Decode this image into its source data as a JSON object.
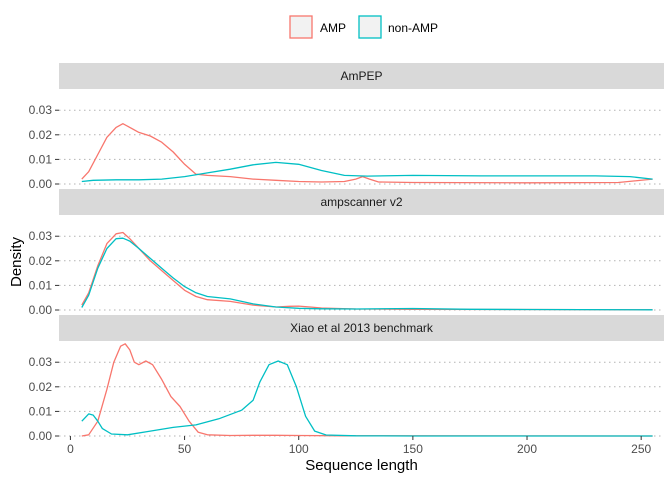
{
  "chart_data": {
    "type": "line",
    "xlabel": "Sequence length",
    "ylabel": "Density",
    "xlim": [
      -5,
      260
    ],
    "ylim": [
      0,
      0.037
    ],
    "x_ticks": [
      0,
      50,
      100,
      150,
      200,
      250
    ],
    "y_ticks": [
      0.0,
      0.01,
      0.02,
      0.03
    ],
    "y_tick_labels": [
      "0.00",
      "0.01",
      "0.02",
      "0.03"
    ],
    "grid": "dotted horizontal",
    "legend": {
      "placement": "top",
      "entries": [
        {
          "label": "AMP",
          "color": "#F8766D"
        },
        {
          "label": "non-AMP",
          "color": "#00BFC4"
        }
      ]
    },
    "panels": [
      {
        "title": "AmPEP",
        "series": [
          {
            "name": "AMP",
            "color": "#F8766D",
            "points": [
              [
                5,
                0.002
              ],
              [
                8,
                0.005
              ],
              [
                12,
                0.012
              ],
              [
                16,
                0.019
              ],
              [
                20,
                0.023
              ],
              [
                23,
                0.0245
              ],
              [
                26,
                0.023
              ],
              [
                30,
                0.021
              ],
              [
                35,
                0.0195
              ],
              [
                40,
                0.017
              ],
              [
                45,
                0.013
              ],
              [
                50,
                0.008
              ],
              [
                55,
                0.004
              ],
              [
                60,
                0.0035
              ],
              [
                70,
                0.003
              ],
              [
                80,
                0.002
              ],
              [
                90,
                0.0015
              ],
              [
                100,
                0.001
              ],
              [
                110,
                0.0008
              ],
              [
                120,
                0.001
              ],
              [
                125,
                0.002
              ],
              [
                128,
                0.003
              ],
              [
                131,
                0.002
              ],
              [
                135,
                0.0008
              ],
              [
                150,
                0.0006
              ],
              [
                200,
                0.0005
              ],
              [
                240,
                0.0006
              ],
              [
                255,
                0.002
              ]
            ]
          },
          {
            "name": "non-AMP",
            "color": "#00BFC4",
            "points": [
              [
                5,
                0.001
              ],
              [
                10,
                0.0015
              ],
              [
                20,
                0.0017
              ],
              [
                30,
                0.0017
              ],
              [
                40,
                0.002
              ],
              [
                50,
                0.003
              ],
              [
                60,
                0.0045
              ],
              [
                70,
                0.006
              ],
              [
                80,
                0.0078
              ],
              [
                90,
                0.0088
              ],
              [
                100,
                0.008
              ],
              [
                110,
                0.0055
              ],
              [
                120,
                0.0035
              ],
              [
                130,
                0.0032
              ],
              [
                150,
                0.0035
              ],
              [
                180,
                0.0033
              ],
              [
                200,
                0.0033
              ],
              [
                230,
                0.0033
              ],
              [
                245,
                0.003
              ],
              [
                255,
                0.002
              ]
            ]
          }
        ]
      },
      {
        "title": "ampscanner v2",
        "series": [
          {
            "name": "AMP",
            "color": "#F8766D",
            "points": [
              [
                5,
                0.002
              ],
              [
                8,
                0.007
              ],
              [
                12,
                0.018
              ],
              [
                16,
                0.027
              ],
              [
                20,
                0.031
              ],
              [
                23,
                0.0315
              ],
              [
                26,
                0.029
              ],
              [
                30,
                0.025
              ],
              [
                35,
                0.02
              ],
              [
                40,
                0.016
              ],
              [
                45,
                0.012
              ],
              [
                50,
                0.008
              ],
              [
                55,
                0.0055
              ],
              [
                60,
                0.0042
              ],
              [
                70,
                0.0035
              ],
              [
                80,
                0.002
              ],
              [
                90,
                0.0012
              ],
              [
                96,
                0.0015
              ],
              [
                100,
                0.0016
              ],
              [
                105,
                0.0012
              ],
              [
                110,
                0.0008
              ],
              [
                125,
                0.0004
              ],
              [
                150,
                0.0003
              ],
              [
                200,
                0.0002
              ],
              [
                255,
                0.0001
              ]
            ]
          },
          {
            "name": "non-AMP",
            "color": "#00BFC4",
            "points": [
              [
                5,
                0.001
              ],
              [
                8,
                0.006
              ],
              [
                12,
                0.017
              ],
              [
                16,
                0.025
              ],
              [
                20,
                0.029
              ],
              [
                23,
                0.0292
              ],
              [
                26,
                0.028
              ],
              [
                30,
                0.025
              ],
              [
                35,
                0.021
              ],
              [
                40,
                0.017
              ],
              [
                45,
                0.013
              ],
              [
                50,
                0.0095
              ],
              [
                55,
                0.007
              ],
              [
                60,
                0.0055
              ],
              [
                70,
                0.0045
              ],
              [
                80,
                0.0025
              ],
              [
                90,
                0.0012
              ],
              [
                100,
                0.0007
              ],
              [
                110,
                0.0005
              ],
              [
                125,
                0.0004
              ],
              [
                150,
                0.0006
              ],
              [
                175,
                0.0003
              ],
              [
                200,
                0.0002
              ],
              [
                255,
                0.0001
              ]
            ]
          }
        ]
      },
      {
        "title": "Xiao et al 2013 benchmark",
        "series": [
          {
            "name": "AMP",
            "color": "#F8766D",
            "points": [
              [
                5,
                0.0
              ],
              [
                8,
                0.0005
              ],
              [
                12,
                0.006
              ],
              [
                16,
                0.019
              ],
              [
                19,
                0.03
              ],
              [
                22,
                0.0365
              ],
              [
                24,
                0.0375
              ],
              [
                26,
                0.035
              ],
              [
                28,
                0.03
              ],
              [
                30,
                0.029
              ],
              [
                33,
                0.0305
              ],
              [
                36,
                0.029
              ],
              [
                40,
                0.023
              ],
              [
                44,
                0.016
              ],
              [
                48,
                0.012
              ],
              [
                52,
                0.006
              ],
              [
                56,
                0.0015
              ],
              [
                60,
                0.0005
              ],
              [
                70,
                0.0002
              ],
              [
                80,
                0.0003
              ],
              [
                90,
                0.0003
              ],
              [
                100,
                0.0002
              ],
              [
                120,
                0.0001
              ],
              [
                255,
                0.0
              ]
            ]
          },
          {
            "name": "non-AMP",
            "color": "#00BFC4",
            "points": [
              [
                5,
                0.006
              ],
              [
                8,
                0.009
              ],
              [
                10,
                0.0085
              ],
              [
                12,
                0.006
              ],
              [
                14,
                0.003
              ],
              [
                18,
                0.0008
              ],
              [
                25,
                0.0005
              ],
              [
                35,
                0.002
              ],
              [
                45,
                0.0035
              ],
              [
                55,
                0.0045
              ],
              [
                65,
                0.007
              ],
              [
                75,
                0.0105
              ],
              [
                80,
                0.0145
              ],
              [
                83,
                0.022
              ],
              [
                87,
                0.029
              ],
              [
                91,
                0.0305
              ],
              [
                95,
                0.029
              ],
              [
                99,
                0.02
              ],
              [
                103,
                0.008
              ],
              [
                107,
                0.002
              ],
              [
                112,
                0.0004
              ],
              [
                125,
                0.0001
              ],
              [
                150,
                0.0
              ],
              [
                255,
                0.0
              ]
            ]
          }
        ]
      }
    ]
  }
}
